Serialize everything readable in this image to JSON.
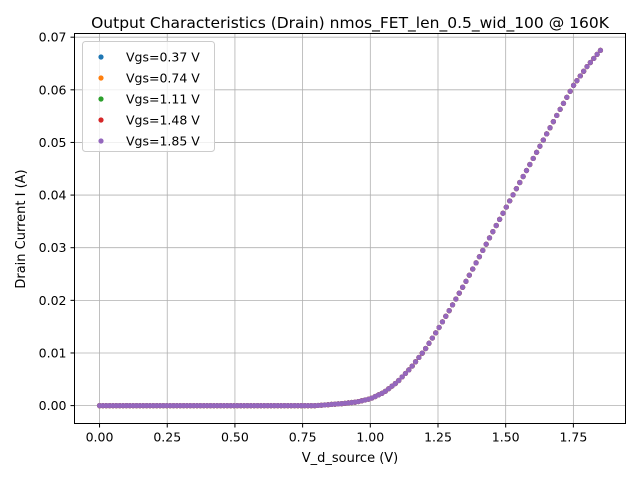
{
  "chart_data": {
    "type": "scatter",
    "title": "Output Characteristics (Drain) nmos_FET_len_0.5_wid_100 @ 160K",
    "xlabel": "V_d_source (V)",
    "ylabel": "Drain Current I (A)",
    "xlim": [
      -0.0925,
      1.9425
    ],
    "ylim": [
      -0.0034,
      0.0707
    ],
    "xticks": [
      0.0,
      0.25,
      0.5,
      0.75,
      1.0,
      1.25,
      1.5,
      1.75
    ],
    "xtick_labels": [
      "0.00",
      "0.25",
      "0.50",
      "0.75",
      "1.00",
      "1.25",
      "1.50",
      "1.75"
    ],
    "yticks": [
      0.0,
      0.01,
      0.02,
      0.03,
      0.04,
      0.05,
      0.06,
      0.07
    ],
    "ytick_labels": [
      "0.00",
      "0.01",
      "0.02",
      "0.03",
      "0.04",
      "0.05",
      "0.06",
      "0.07"
    ],
    "grid": true,
    "legend_position": "top-left",
    "x_range": [
      0.0,
      1.85
    ],
    "num_points": 150,
    "curve": {
      "x": [
        0.0,
        0.8,
        0.85,
        0.9,
        0.95,
        1.0,
        1.05,
        1.1,
        1.15,
        1.2,
        1.25,
        1.3,
        1.35,
        1.4,
        1.45,
        1.5,
        1.55,
        1.6,
        1.65,
        1.7,
        1.75,
        1.8,
        1.85
      ],
      "y": [
        0.0,
        0.0,
        0.0002,
        0.0004,
        0.0007,
        0.0013,
        0.0025,
        0.0045,
        0.0072,
        0.0105,
        0.0145,
        0.0188,
        0.0233,
        0.028,
        0.0328,
        0.0375,
        0.0422,
        0.0468,
        0.0515,
        0.0562,
        0.0608,
        0.0644,
        0.0675
      ]
    },
    "series": [
      {
        "name": "Vgs=0.37 V",
        "color": "#1f77b4"
      },
      {
        "name": "Vgs=0.74 V",
        "color": "#ff7f0e"
      },
      {
        "name": "Vgs=1.11 V",
        "color": "#2ca02c"
      },
      {
        "name": "Vgs=1.48 V",
        "color": "#d62728"
      },
      {
        "name": "Vgs=1.85 V",
        "color": "#9467bd"
      }
    ]
  }
}
